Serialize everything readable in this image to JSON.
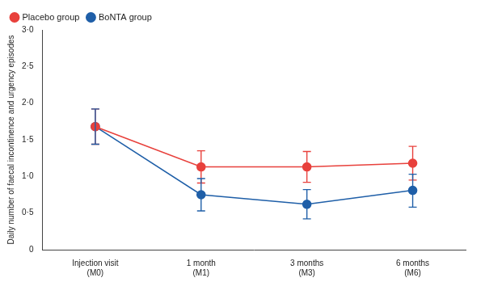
{
  "chart_data": {
    "type": "line",
    "y_label": "Daily number of faecal incontinence and urgency episodes",
    "categories": [
      "Injection visit\n(M0)",
      "1 month\n(M1)",
      "3 months\n(M3)",
      "6 months\n(M6)"
    ],
    "series": [
      {
        "name": "Placebo group",
        "color": "#e8413c",
        "marker": "circle",
        "line_style": "solid",
        "values": [
          1.68,
          1.13,
          1.13,
          1.18
        ],
        "error_low": [
          1.44,
          0.91,
          0.92,
          0.95
        ],
        "error_high": [
          1.92,
          1.35,
          1.34,
          1.41
        ]
      },
      {
        "name": "BoNTA group",
        "color": "#1f5fa8",
        "marker": "circle",
        "line_style": "solid",
        "values": [
          1.68,
          0.75,
          0.62,
          0.81
        ],
        "error_low": [
          1.44,
          0.53,
          0.42,
          0.58
        ],
        "error_high": [
          1.92,
          0.97,
          0.82,
          1.03
        ]
      }
    ],
    "ylim": [
      0,
      3
    ],
    "yticks": [
      0,
      {
        "value": 0.5,
        "label": "0·5"
      },
      {
        "value": 1,
        "label": "1·0"
      },
      {
        "value": 1.5,
        "label": "1·5"
      },
      {
        "value": 2,
        "label": "2·0"
      },
      {
        "value": 2.5,
        "label": "2·5"
      },
      {
        "value": 3,
        "label": "3·0"
      }
    ],
    "grid": false,
    "legend": "top-left"
  }
}
